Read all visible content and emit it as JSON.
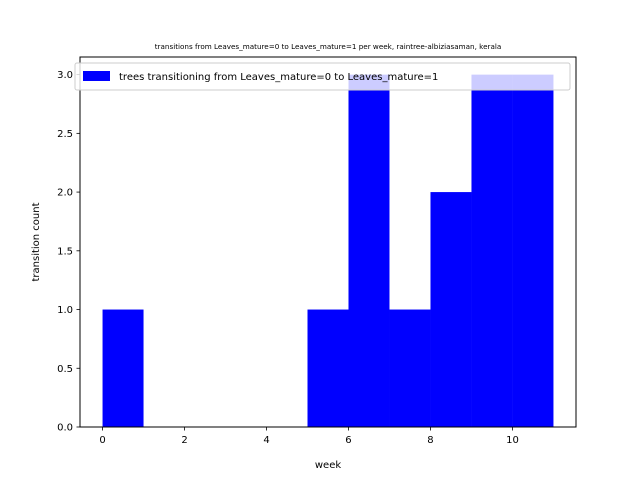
{
  "chart_data": {
    "type": "bar",
    "title": "transitions from Leaves_mature=0 to Leaves_mature=1 per week, raintree-albiziasaman, kerala",
    "xlabel": "week",
    "ylabel": "transition count",
    "series": [
      {
        "name": "trees transitioning from Leaves_mature=0 to Leaves_mature=1",
        "color": "#0000ff",
        "bins": [
          {
            "start": 0,
            "end": 1,
            "value": 1
          },
          {
            "start": 5,
            "end": 6,
            "value": 1
          },
          {
            "start": 6,
            "end": 7,
            "value": 3
          },
          {
            "start": 7,
            "end": 8,
            "value": 1
          },
          {
            "start": 8,
            "end": 9,
            "value": 2
          },
          {
            "start": 9,
            "end": 10,
            "value": 3
          },
          {
            "start": 10,
            "end": 11,
            "value": 3
          }
        ]
      }
    ],
    "xlim": [
      -0.55,
      11.55
    ],
    "ylim": [
      0,
      3.15
    ],
    "xticks": [
      "0",
      "2",
      "4",
      "6",
      "8",
      "10"
    ],
    "yticks": [
      "0.0",
      "0.5",
      "1.0",
      "1.5",
      "2.0",
      "2.5",
      "3.0"
    ],
    "grid": false,
    "legend_position": "top"
  }
}
